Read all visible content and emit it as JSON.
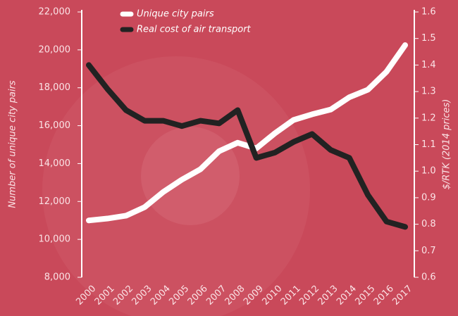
{
  "chart_data": {
    "type": "line",
    "categories": [
      "2000",
      "2001",
      "2002",
      "2003",
      "2004",
      "2005",
      "2006",
      "2007",
      "2008",
      "2009",
      "2010",
      "2011",
      "2012",
      "2013",
      "2014",
      "2015",
      "2016",
      "2017"
    ],
    "series": [
      {
        "name": "Unique city pairs",
        "color": "#ffffff",
        "values": [
          11000,
          11100,
          11250,
          11700,
          12500,
          13150,
          13700,
          14650,
          15100,
          14800,
          15600,
          16300,
          16600,
          16850,
          17500,
          17900,
          18850,
          20250
        ]
      },
      {
        "name": "Real cost of air transport",
        "color": "#222222",
        "axis": "y2",
        "values": [
          1.4,
          1.31,
          1.23,
          1.19,
          1.19,
          1.17,
          1.19,
          1.18,
          1.23,
          1.05,
          1.07,
          1.11,
          1.14,
          1.08,
          1.05,
          0.91,
          0.81,
          0.79
        ]
      }
    ],
    "ylabel": "Number of unique city pairs",
    "y2label": "$/RTK (2014 prices)",
    "ylim": [
      8000,
      22000
    ],
    "yticks": [
      {
        "value": 8000,
        "label": "8,000"
      },
      {
        "value": 10000,
        "label": "10,000"
      },
      {
        "value": 12000,
        "label": "12,000"
      },
      {
        "value": 14000,
        "label": "14,000"
      },
      {
        "value": 16000,
        "label": "16,000"
      },
      {
        "value": 18000,
        "label": "18,000"
      },
      {
        "value": 20000,
        "label": "20,000"
      },
      {
        "value": 22000,
        "label": "22,000"
      }
    ],
    "y2lim": [
      0.6,
      1.6
    ],
    "y2ticks": [
      0.6,
      0.7,
      0.8,
      0.9,
      {
        "value": 1,
        "label": "1.0"
      },
      1.1,
      1.2,
      1.3,
      1.4,
      1.5,
      1.6
    ]
  }
}
